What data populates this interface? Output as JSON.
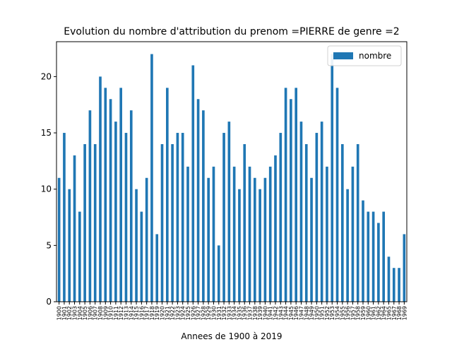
{
  "chart_data": {
    "type": "bar",
    "title": "Evolution du nombre d'attribution du prenom =PIERRE de genre =2",
    "x_label": "Annees de 1900 à 2019",
    "categories": [
      "1900",
      "1901",
      "1902",
      "1903",
      "1904",
      "1905",
      "1906",
      "1907",
      "1908",
      "1909",
      "1910",
      "1911",
      "1912",
      "1913",
      "1914",
      "1915",
      "1916",
      "1917",
      "1918",
      "1919",
      "1920",
      "1921",
      "1922",
      "1923",
      "1924",
      "1925",
      "1926",
      "1927",
      "1928",
      "1929",
      "1930",
      "1931",
      "1932",
      "1933",
      "1934",
      "1935",
      "1936",
      "1937",
      "1938",
      "1939",
      "1940",
      "1941",
      "1942",
      "1943",
      "1944",
      "1945",
      "1946",
      "1947",
      "1948",
      "1949",
      "1950",
      "1951",
      "1952",
      "1953",
      "1954",
      "1955",
      "1956",
      "1957",
      "1958",
      "1959",
      "1960",
      "1961",
      "1962",
      "1964",
      "1965",
      "1967",
      "1968",
      "1969"
    ],
    "series": [
      {
        "name": "nombre",
        "color": "#1f77b4",
        "values": [
          11,
          15,
          10,
          13,
          8,
          14,
          17,
          14,
          20,
          19,
          18,
          16,
          19,
          15,
          17,
          10,
          8,
          11,
          22,
          6,
          14,
          19,
          14,
          15,
          15,
          12,
          21,
          18,
          17,
          11,
          12,
          5,
          15,
          16,
          12,
          10,
          14,
          12,
          11,
          10,
          11,
          12,
          13,
          15,
          19,
          18,
          19,
          16,
          14,
          11,
          15,
          16,
          12,
          22,
          19,
          14,
          10,
          12,
          14,
          9,
          8,
          8,
          7,
          8,
          4,
          3,
          3,
          6
        ]
      }
    ],
    "ylim": [
      0,
      23.1
    ],
    "yticks": [
      0,
      5,
      10,
      15,
      20
    ],
    "legend": "upper right"
  }
}
